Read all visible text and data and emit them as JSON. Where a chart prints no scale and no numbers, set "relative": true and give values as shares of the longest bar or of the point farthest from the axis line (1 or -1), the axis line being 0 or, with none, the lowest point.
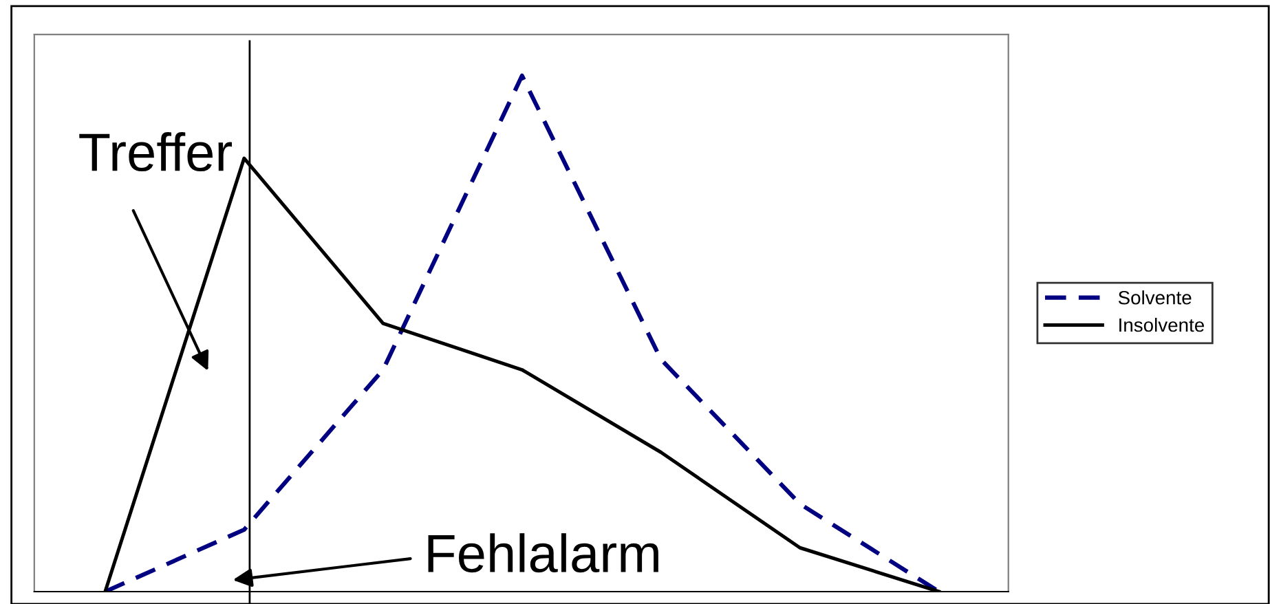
{
  "chart_data": {
    "type": "line",
    "relative": true,
    "categories": [
      null,
      null,
      null,
      null,
      null,
      null,
      null
    ],
    "series": [
      {
        "name": "Solvente",
        "color": "#000080",
        "line_style": "dashed",
        "values": [
          0,
          0.12,
          0.43,
          1,
          0.45,
          0.17,
          0
        ]
      },
      {
        "name": "Insolvente",
        "color": "#000000",
        "line_style": "solid",
        "values": [
          0,
          0.84,
          0.52,
          0.43,
          0.27,
          0.085,
          0
        ]
      }
    ],
    "annotations": [
      "Treffer",
      "Fehlalarm"
    ],
    "legend": "right",
    "marker": "none"
  }
}
